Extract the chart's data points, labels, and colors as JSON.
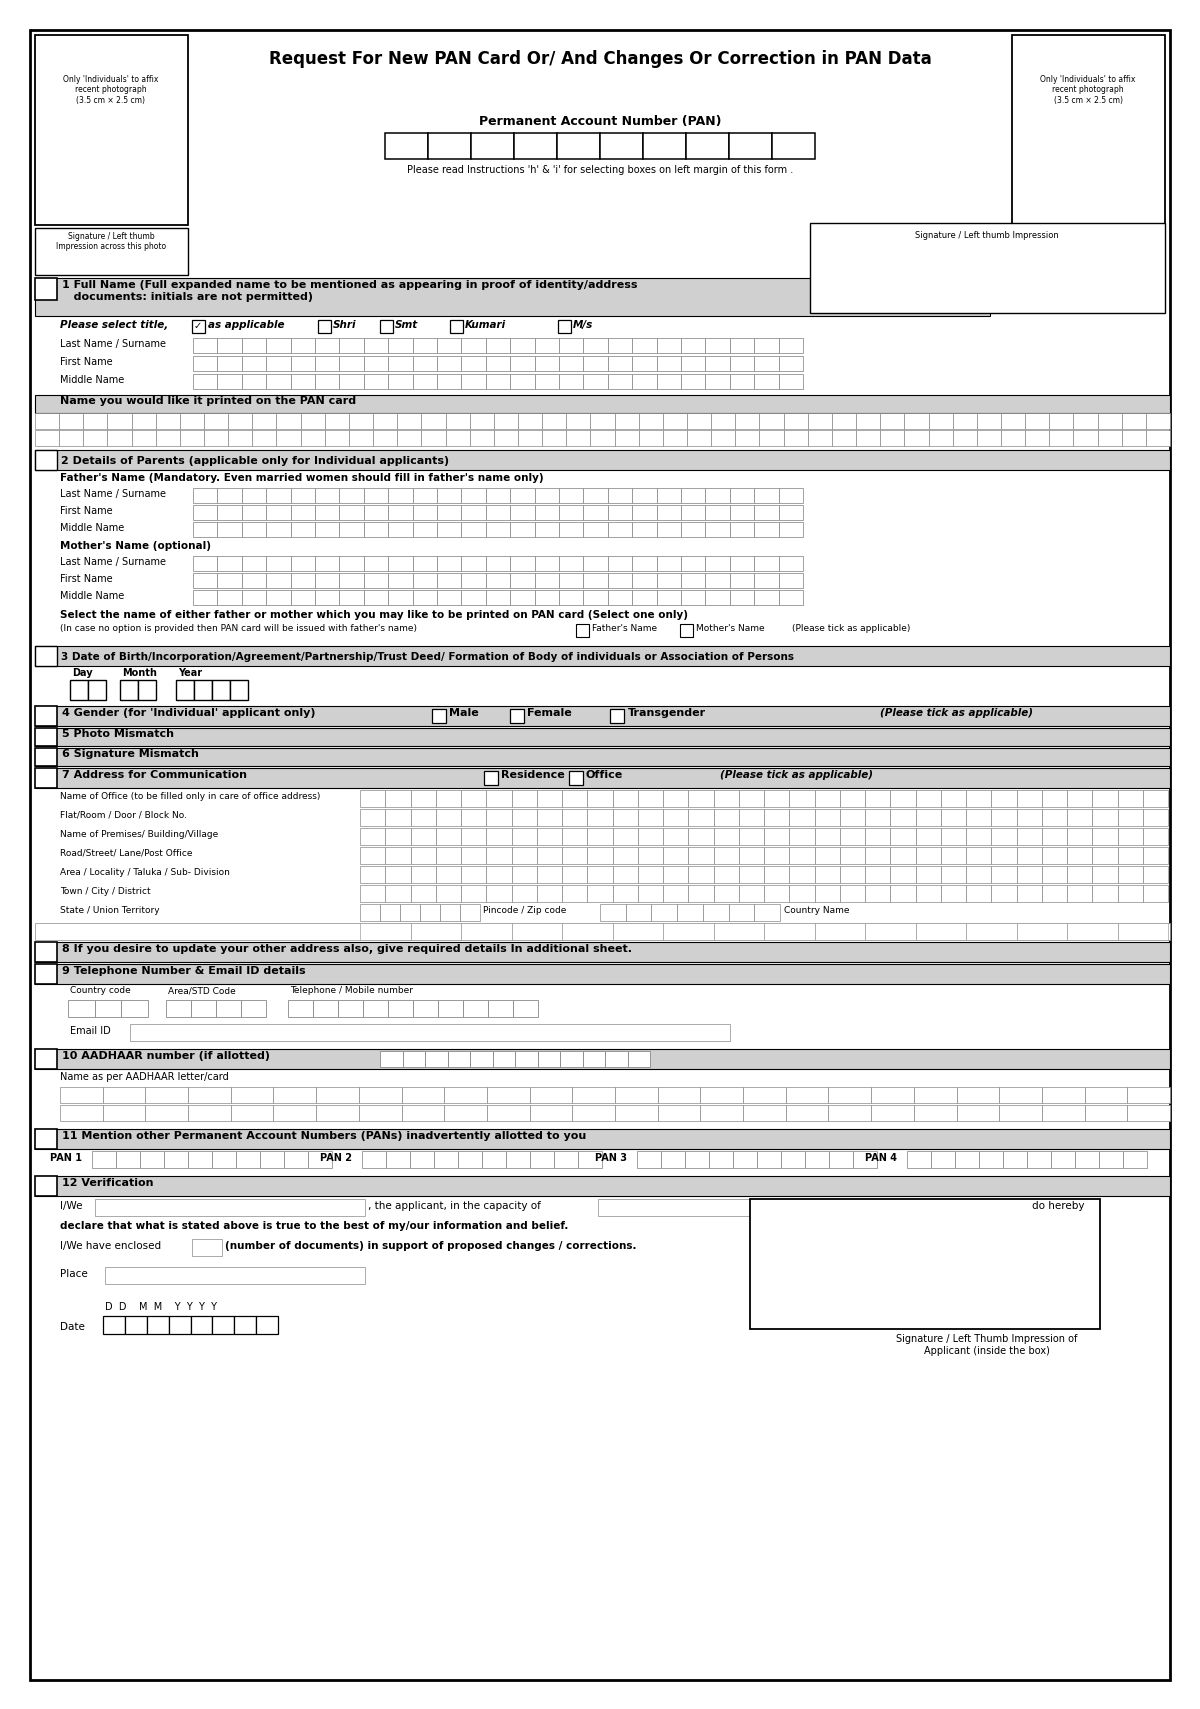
{
  "title": "Request For New PAN Card Or/ And Changes Or Correction in PAN Data",
  "photo_text": "Only 'Individuals' to affix\nrecent photograph\n(3.5 cm × 2.5 cm)",
  "pan_label": "Permanent Account Number (PAN)",
  "instruction": "Please read Instructions 'h' & 'i' for selecting boxes on left margin of this form .",
  "sig_across": "Signature / Left thumb\nImpression across this photo",
  "sig_right_small": "Signature / Left thumb Impression",
  "s1": "1 Full Name (Full expanded name to be mentioned as appearing in proof of identity/address",
  "s1b": "   documents: initials are not permitted)",
  "title_options": [
    "Shri",
    "Smt",
    "Kumari",
    "M/s"
  ],
  "s2": "2 Details of Parents (applicable only for Individual applicants)",
  "fathers_label": "Father's Name (Mandatory. Even married women should fill in father's name only)",
  "mothers_label": "Mother's Name (optional)",
  "sel_label": "Select the name of either father or mother which you may like to be printed on PAN card (Select one only)",
  "sel_sub": "(In case no option is provided then PAN card will be issued with father's name)",
  "s3": "3 Date of Birth/Incorporation/Agreement/Partnership/Trust Deed/ Formation of Body of individuals or Association of Persons",
  "s4": "4 Gender (for 'Individual' applicant only)",
  "s5": "5 Photo Mismatch",
  "s6": "6 Signature Mismatch",
  "s7": "7 Address for Communication",
  "addr_fields": [
    "Name of Office (to be filled only in care of office address)",
    "Flat/Room / Door / Block No.",
    "Name of Premises/ Building/Village",
    "Road/Street/ Lane/Post Office",
    "Area / Locality / Taluka / Sub- Division",
    "Town / City / District",
    "State / Union Territory"
  ],
  "s8": "8 If you desire to update your other address also, give required details In additional sheet.",
  "s9": "9 Telephone Number & Email ID details",
  "s10": "10 AADHAAR number (if allotted)",
  "aadhaar_name": "Name as per AADHAAR letter/card",
  "s11": "11 Mention other Permanent Account Numbers (PANs) inadvertently allotted to you",
  "pan_nums": [
    "PAN 1",
    "PAN 2",
    "PAN 3",
    "PAN 4"
  ],
  "s12": "12 Verification",
  "sig_bottom": "Signature / Left Thumb Impression of\nApplicant (inside the box)",
  "gray": "#d0d0d0",
  "cell_ec": "#888888"
}
